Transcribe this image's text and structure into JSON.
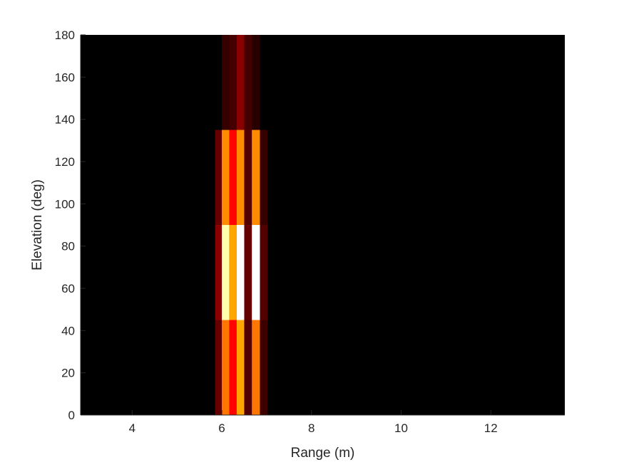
{
  "chart_data": {
    "type": "heatmap",
    "title": "",
    "xlabel": "Range (m)",
    "ylabel": "Elevation (deg)",
    "xlim": [
      2.85,
      13.65
    ],
    "ylim": [
      0,
      180
    ],
    "x_ticks": [
      4,
      6,
      8,
      10,
      12
    ],
    "y_ticks": [
      0,
      20,
      40,
      60,
      80,
      100,
      120,
      140,
      160,
      180
    ],
    "x_tick_labels": [
      "4",
      "6",
      "8",
      "10",
      "12"
    ],
    "y_tick_labels": [
      "0",
      "20",
      "40",
      "60",
      "80",
      "100",
      "120",
      "140",
      "160",
      "180"
    ],
    "colormap": "hot",
    "background_color": "#000000",
    "grid": false,
    "cells": [
      {
        "x0": 5.85,
        "x1": 6.0,
        "y0": 0,
        "y1": 45,
        "value": 0.15
      },
      {
        "x0": 6.0,
        "x1": 6.17,
        "y0": 0,
        "y1": 45,
        "value": 0.55
      },
      {
        "x0": 6.17,
        "x1": 6.33,
        "y0": 0,
        "y1": 45,
        "value": 0.38
      },
      {
        "x0": 6.33,
        "x1": 6.5,
        "y0": 0,
        "y1": 45,
        "value": 0.62
      },
      {
        "x0": 6.5,
        "x1": 6.67,
        "y0": 0,
        "y1": 45,
        "value": 0.12
      },
      {
        "x0": 6.67,
        "x1": 6.85,
        "y0": 0,
        "y1": 45,
        "value": 0.55
      },
      {
        "x0": 6.85,
        "x1": 7.02,
        "y0": 0,
        "y1": 45,
        "value": 0.09
      },
      {
        "x0": 5.85,
        "x1": 6.0,
        "y0": 45,
        "y1": 90,
        "value": 0.2
      },
      {
        "x0": 6.0,
        "x1": 6.17,
        "y0": 45,
        "y1": 90,
        "value": 0.92
      },
      {
        "x0": 6.17,
        "x1": 6.33,
        "y0": 45,
        "y1": 90,
        "value": 0.62
      },
      {
        "x0": 6.33,
        "x1": 6.5,
        "y0": 45,
        "y1": 90,
        "value": 1.0
      },
      {
        "x0": 6.5,
        "x1": 6.67,
        "y0": 45,
        "y1": 90,
        "value": 0.15
      },
      {
        "x0": 6.67,
        "x1": 6.85,
        "y0": 45,
        "y1": 90,
        "value": 1.0
      },
      {
        "x0": 6.85,
        "x1": 7.02,
        "y0": 45,
        "y1": 90,
        "value": 0.12
      },
      {
        "x0": 5.85,
        "x1": 6.0,
        "y0": 90,
        "y1": 135,
        "value": 0.15
      },
      {
        "x0": 6.0,
        "x1": 6.17,
        "y0": 90,
        "y1": 135,
        "value": 0.58
      },
      {
        "x0": 6.17,
        "x1": 6.33,
        "y0": 90,
        "y1": 135,
        "value": 0.38
      },
      {
        "x0": 6.33,
        "x1": 6.5,
        "y0": 90,
        "y1": 135,
        "value": 0.58
      },
      {
        "x0": 6.5,
        "x1": 6.67,
        "y0": 90,
        "y1": 135,
        "value": 0.12
      },
      {
        "x0": 6.67,
        "x1": 6.85,
        "y0": 90,
        "y1": 135,
        "value": 0.58
      },
      {
        "x0": 6.85,
        "x1": 7.02,
        "y0": 90,
        "y1": 135,
        "value": 0.08
      },
      {
        "x0": 6.0,
        "x1": 6.17,
        "y0": 135,
        "y1": 180,
        "value": 0.08
      },
      {
        "x0": 6.17,
        "x1": 6.33,
        "y0": 135,
        "y1": 180,
        "value": 0.1
      },
      {
        "x0": 6.33,
        "x1": 6.5,
        "y0": 135,
        "y1": 180,
        "value": 0.2
      },
      {
        "x0": 6.5,
        "x1": 6.67,
        "y0": 135,
        "y1": 180,
        "value": 0.1
      },
      {
        "x0": 6.67,
        "x1": 6.85,
        "y0": 135,
        "y1": 180,
        "value": 0.06
      }
    ]
  }
}
